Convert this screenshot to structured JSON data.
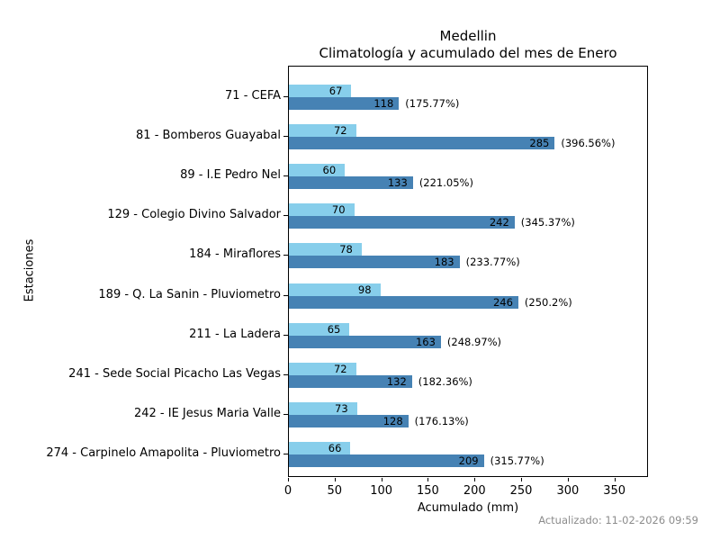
{
  "title": {
    "line1": "Medellin",
    "line2": "Climatología y acumulado del mes de Enero"
  },
  "axes": {
    "xlabel": "Acumulado (mm)",
    "ylabel": "Estaciones"
  },
  "footer": {
    "updated": "Actualizado: 11-02-2026 09:59"
  },
  "colors": {
    "climatologia": "#87CEEB",
    "acumulado": "#4682B4",
    "footer_text": "#8c8c8c"
  },
  "chart_data": {
    "type": "bar",
    "orientation": "horizontal",
    "title": "Medellin — Climatología y acumulado del mes de Enero",
    "xlabel": "Acumulado (mm)",
    "ylabel": "Estaciones",
    "xlim": [
      0,
      386
    ],
    "xticks": [
      0,
      50,
      100,
      150,
      200,
      250,
      300,
      350
    ],
    "grid": false,
    "series_names": [
      "Climatología",
      "Acumulado"
    ],
    "categories": [
      "71 - CEFA",
      "81 - Bomberos Guayabal",
      "89 - I.E Pedro Nel",
      "129 - Colegio Divino Salvador",
      "184 - Miraflores",
      "189 - Q. La Sanin - Pluviometro",
      "211 - La Ladera",
      "241 - Sede Social Picacho Las Vegas",
      "242 - IE Jesus Maria Valle",
      "274 - Carpinelo Amapolita - Pluviometro"
    ],
    "stations": [
      {
        "label": "71 - CEFA",
        "climatologia": 67,
        "acumulado": 118,
        "pct": "(175.77%)"
      },
      {
        "label": "81 - Bomberos Guayabal",
        "climatologia": 72,
        "acumulado": 285,
        "pct": "(396.56%)"
      },
      {
        "label": "89 - I.E Pedro Nel",
        "climatologia": 60,
        "acumulado": 133,
        "pct": "(221.05%)"
      },
      {
        "label": "129 - Colegio Divino Salvador",
        "climatologia": 70,
        "acumulado": 242,
        "pct": "(345.37%)"
      },
      {
        "label": "184 - Miraflores",
        "climatologia": 78,
        "acumulado": 183,
        "pct": "(233.77%)"
      },
      {
        "label": "189 - Q. La Sanin - Pluviometro",
        "climatologia": 98,
        "acumulado": 246,
        "pct": "(250.2%)"
      },
      {
        "label": "211 - La Ladera",
        "climatologia": 65,
        "acumulado": 163,
        "pct": "(248.97%)"
      },
      {
        "label": "241 - Sede Social Picacho Las Vegas",
        "climatologia": 72,
        "acumulado": 132,
        "pct": "(182.36%)"
      },
      {
        "label": "242 - IE Jesus Maria Valle",
        "climatologia": 73,
        "acumulado": 128,
        "pct": "(176.13%)"
      },
      {
        "label": "274 - Carpinelo Amapolita - Pluviometro",
        "climatologia": 66,
        "acumulado": 209,
        "pct": "(315.77%)"
      }
    ]
  }
}
